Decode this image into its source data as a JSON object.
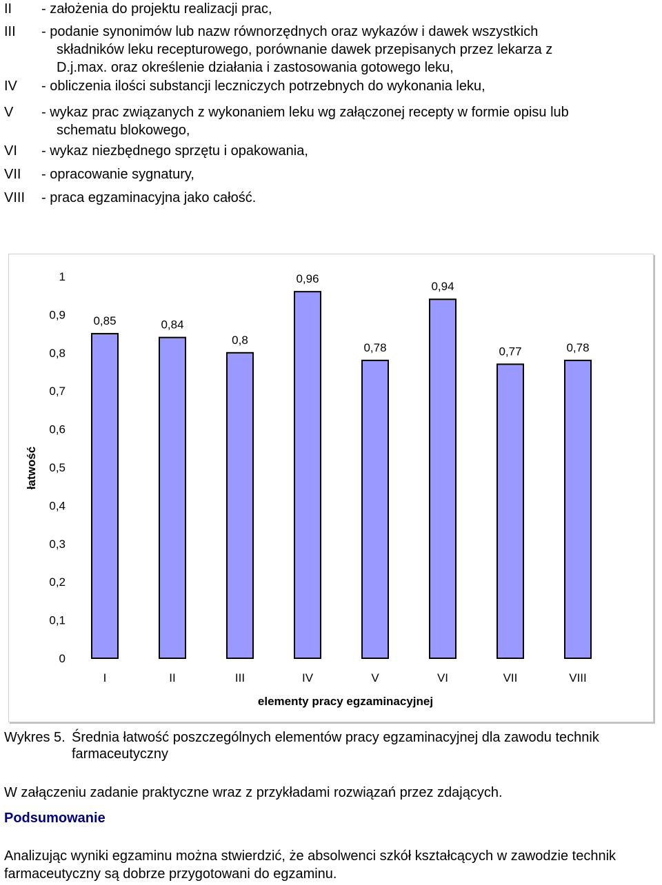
{
  "list_items": [
    {
      "roman": "II",
      "lines": [
        "- założenia do projektu realizacji prac,"
      ]
    },
    {
      "roman": "III",
      "lines": [
        "- podanie synonimów lub nazw równorzędnych oraz wykazów i dawek wszystkich",
        "składników leku recepturowego, porównanie dawek przepisanych przez lekarza z",
        "D.j.max. oraz określenie działania i zastosowania gotowego leku,"
      ]
    },
    {
      "roman": "IV",
      "lines": [
        "- obliczenia ilości substancji leczniczych potrzebnych do wykonania leku,"
      ]
    },
    {
      "roman": "V",
      "lines": [
        "- wykaz prac związanych z wykonaniem leku wg załączonej recepty w formie opisu lub",
        "schematu blokowego,"
      ]
    },
    {
      "roman": "VI",
      "lines": [
        "- wykaz niezbędnego sprzętu i opakowania,"
      ]
    },
    {
      "roman": "VII",
      "lines": [
        "- opracowanie sygnatury,"
      ]
    },
    {
      "roman": "VIII",
      "lines": [
        "- praca egzaminacyjna jako całość."
      ]
    }
  ],
  "chart_data": {
    "type": "bar",
    "categories": [
      "I",
      "II",
      "III",
      "IV",
      "V",
      "VI",
      "VII",
      "VIII"
    ],
    "values": [
      0.85,
      0.84,
      0.8,
      0.96,
      0.78,
      0.94,
      0.77,
      0.78
    ],
    "value_labels": [
      "0,85",
      "0,84",
      "0,8",
      "0,96",
      "0,78",
      "0,94",
      "0,77",
      "0,78"
    ],
    "ylim": [
      0,
      1
    ],
    "yticks": [
      0,
      0.1,
      0.2,
      0.3,
      0.4,
      0.5,
      0.6,
      0.7,
      0.8,
      0.9,
      1
    ],
    "ytick_labels": [
      "0",
      "0,1",
      "0,2",
      "0,3",
      "0,4",
      "0,5",
      "0,6",
      "0,7",
      "0,8",
      "0,9",
      "1"
    ],
    "xlabel": "elementy pracy egzaminacyjnej",
    "ylabel": "łatwość",
    "grid": false,
    "bar_color": "#9999ff"
  },
  "caption": {
    "number": "Wykres 5.",
    "text": "Średnia łatwość poszczególnych elementów pracy egzaminacyjnej dla zawodu technik farmaceutyczny"
  },
  "paragraph_attachment": "W załączeniu zadanie praktyczne wraz z przykładami rozwiązań przez zdających.",
  "summary_heading": "Podsumowanie",
  "summary_text": "Analizując wyniki egzaminu można stwierdzić, że absolwenci szkół kształcących w zawodzie technik farmaceutyczny są dobrze przygotowani do egzaminu."
}
